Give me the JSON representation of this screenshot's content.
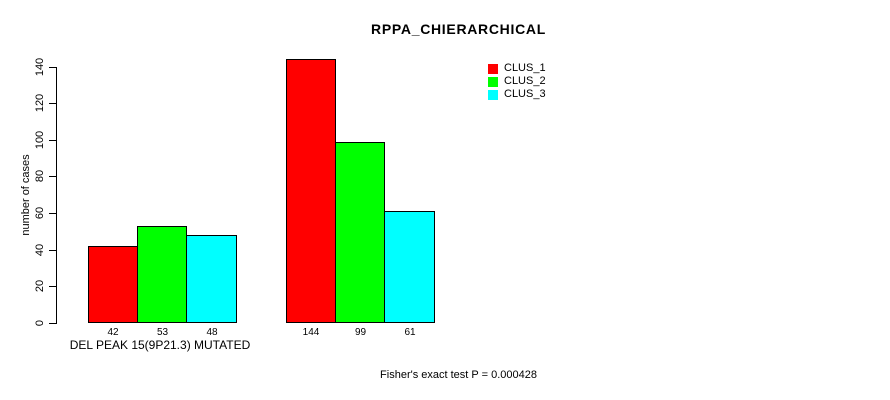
{
  "chart_data": {
    "type": "bar",
    "title": "RPPA_CHIERARCHICAL",
    "ylabel": "number of cases",
    "xlabel": "DEL PEAK 15(9P21.3) MUTATED",
    "annotation": "Fisher's exact test P = 0.000428",
    "categories": [
      "DEL PEAK 15(9P21.3) MUTATED",
      ""
    ],
    "series": [
      {
        "name": "CLUS_1",
        "color": "#FF0000",
        "values": [
          42,
          144
        ]
      },
      {
        "name": "CLUS_2",
        "color": "#00FF00",
        "values": [
          53,
          99
        ]
      },
      {
        "name": "CLUS_3",
        "color": "#00FFFF",
        "values": [
          48,
          61
        ]
      }
    ],
    "bar_value_labels": [
      [
        42,
        53,
        48
      ],
      [
        144,
        99,
        61
      ]
    ],
    "yticks": [
      0,
      20,
      40,
      60,
      80,
      100,
      120,
      140
    ],
    "ylim": [
      0,
      140
    ],
    "grid": false,
    "legend_position": "top-right",
    "background_color": "#FFFFFF",
    "axis_color": "#000000",
    "bar_border_color": "#000000",
    "text_color": "#000000"
  }
}
